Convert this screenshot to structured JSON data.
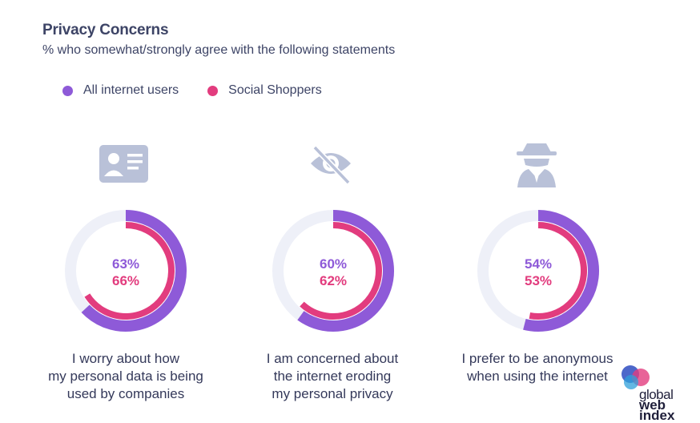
{
  "chart_data": {
    "type": "donut",
    "title": "Privacy Concerns",
    "subtitle": "% who somewhat/strongly agree with the following statements",
    "series": [
      {
        "name": "All internet users",
        "color": "#8e5ad8"
      },
      {
        "name": "Social Shoppers",
        "color": "#e23c7e"
      }
    ],
    "items": [
      {
        "icon": "id-card-icon",
        "values": [
          63,
          66
        ],
        "labels": [
          "63%",
          "66%"
        ],
        "caption": [
          "I worry about how",
          "my personal data is being",
          "used by companies"
        ]
      },
      {
        "icon": "eye-slash-icon",
        "values": [
          60,
          62
        ],
        "labels": [
          "60%",
          "62%"
        ],
        "caption": [
          "I am concerned about",
          "the internet eroding",
          "my personal privacy"
        ]
      },
      {
        "icon": "spy-icon",
        "values": [
          54,
          53
        ],
        "labels": [
          "54%",
          "53%"
        ],
        "caption": [
          "I prefer to be anonymous",
          "when using the internet"
        ]
      }
    ]
  },
  "logo": {
    "lines": [
      "global",
      "web",
      "index"
    ]
  },
  "colors": {
    "track": "#eef0f8",
    "icon": "#b9c1d8",
    "text": "#3d4466"
  }
}
